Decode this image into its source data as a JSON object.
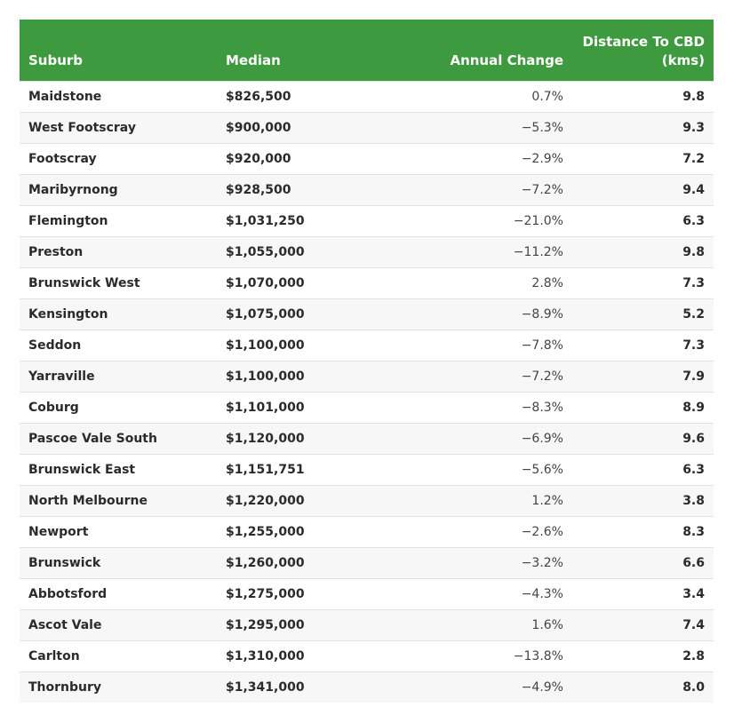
{
  "table": {
    "headers": {
      "suburb": "Suburb",
      "median": "Median",
      "annual_change": "Annual Change",
      "distance_line1": "Distance To CBD",
      "distance_line2": "(kms)"
    },
    "rows": [
      {
        "suburb": "Maidstone",
        "median": "$826,500",
        "annual_change": "0.7%",
        "distance": "9.8"
      },
      {
        "suburb": "West Footscray",
        "median": "$900,000",
        "annual_change": "−5.3%",
        "distance": "9.3"
      },
      {
        "suburb": "Footscray",
        "median": "$920,000",
        "annual_change": "−2.9%",
        "distance": "7.2"
      },
      {
        "suburb": "Maribyrnong",
        "median": "$928,500",
        "annual_change": "−7.2%",
        "distance": "9.4"
      },
      {
        "suburb": "Flemington",
        "median": "$1,031,250",
        "annual_change": "−21.0%",
        "distance": "6.3"
      },
      {
        "suburb": "Preston",
        "median": "$1,055,000",
        "annual_change": "−11.2%",
        "distance": "9.8"
      },
      {
        "suburb": "Brunswick West",
        "median": "$1,070,000",
        "annual_change": "2.8%",
        "distance": "7.3"
      },
      {
        "suburb": "Kensington",
        "median": "$1,075,000",
        "annual_change": "−8.9%",
        "distance": "5.2"
      },
      {
        "suburb": "Seddon",
        "median": "$1,100,000",
        "annual_change": "−7.8%",
        "distance": "7.3"
      },
      {
        "suburb": "Yarraville",
        "median": "$1,100,000",
        "annual_change": "−7.2%",
        "distance": "7.9"
      },
      {
        "suburb": "Coburg",
        "median": "$1,101,000",
        "annual_change": "−8.3%",
        "distance": "8.9"
      },
      {
        "suburb": "Pascoe Vale South",
        "median": "$1,120,000",
        "annual_change": "−6.9%",
        "distance": "9.6"
      },
      {
        "suburb": "Brunswick East",
        "median": "$1,151,751",
        "annual_change": "−5.6%",
        "distance": "6.3"
      },
      {
        "suburb": "North Melbourne",
        "median": "$1,220,000",
        "annual_change": "1.2%",
        "distance": "3.8"
      },
      {
        "suburb": "Newport",
        "median": "$1,255,000",
        "annual_change": "−2.6%",
        "distance": "8.3"
      },
      {
        "suburb": "Brunswick",
        "median": "$1,260,000",
        "annual_change": "−3.2%",
        "distance": "6.6"
      },
      {
        "suburb": "Abbotsford",
        "median": "$1,275,000",
        "annual_change": "−4.3%",
        "distance": "3.4"
      },
      {
        "suburb": "Ascot Vale",
        "median": "$1,295,000",
        "annual_change": "1.6%",
        "distance": "7.4"
      },
      {
        "suburb": "Carlton",
        "median": "$1,310,000",
        "annual_change": "−13.8%",
        "distance": "2.8"
      },
      {
        "suburb": "Thornbury",
        "median": "$1,341,000",
        "annual_change": "−4.9%",
        "distance": "8.0"
      }
    ]
  },
  "colors": {
    "header_bg": "#3e9a3e",
    "header_text": "#ffffff",
    "row_alt_bg": "#f7f7f7",
    "row_border": "#e2e2e2"
  }
}
